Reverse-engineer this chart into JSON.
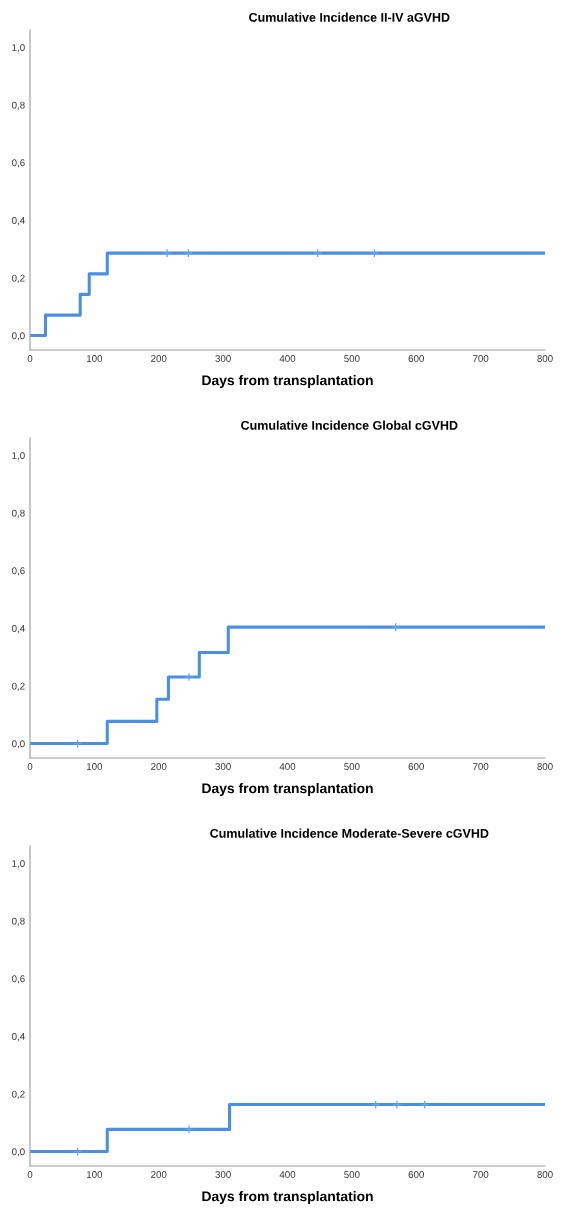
{
  "chart_data": [
    {
      "type": "step",
      "title": "Cumulative Incidence II-IV aGVHD",
      "xlabel": "Days from transplantation",
      "series": [
        {
          "color": "#4a8fe3",
          "x": [
            0,
            24,
            78,
            92,
            120,
            800
          ],
          "values": [
            0,
            0.071,
            0.143,
            0.214,
            0.286,
            0.286
          ]
        },
        {
          "type": "scatter",
          "marker": "cross",
          "color": "#6aa3e8",
          "x": [
            213,
            246,
            447,
            535
          ],
          "values": [
            0.286,
            0.286,
            0.286,
            0.286
          ]
        }
      ],
      "xlim": [
        0,
        800
      ],
      "xticks": [
        0,
        100,
        200,
        300,
        400,
        500,
        600,
        700,
        800
      ],
      "ylim": [
        -0.05,
        1.06
      ],
      "yticks": [
        {
          "value": 0,
          "label": "0,0"
        },
        {
          "value": 0.2,
          "label": "0,2"
        },
        {
          "value": 0.4,
          "label": "0,4"
        },
        {
          "value": 0.6,
          "label": "0,6"
        },
        {
          "value": 0.8,
          "label": "0,8"
        },
        {
          "value": 1.0,
          "label": "1,0"
        }
      ],
      "grid": false
    },
    {
      "type": "step",
      "title": "Cumulative Incidence Global cGVHD",
      "xlabel": "Days from transplantation",
      "series": [
        {
          "color": "#4a8fe3",
          "x": [
            0,
            120,
            197,
            215,
            263,
            308,
            800
          ],
          "values": [
            0,
            0.077,
            0.154,
            0.231,
            0.316,
            0.404,
            0.404
          ]
        },
        {
          "type": "scatter",
          "marker": "cross",
          "color": "#6aa3e8",
          "x": [
            74,
            247,
            568
          ],
          "values": [
            0,
            0.231,
            0.404
          ]
        }
      ],
      "xlim": [
        0,
        800
      ],
      "xticks": [
        0,
        100,
        200,
        300,
        400,
        500,
        600,
        700,
        800
      ],
      "ylim": [
        -0.05,
        1.06
      ],
      "yticks": [
        {
          "value": 0,
          "label": "0,0"
        },
        {
          "value": 0.2,
          "label": "0,2"
        },
        {
          "value": 0.4,
          "label": "0,4"
        },
        {
          "value": 0.6,
          "label": "0,6"
        },
        {
          "value": 0.8,
          "label": "0,8"
        },
        {
          "value": 1.0,
          "label": "1,0"
        }
      ],
      "grid": false
    },
    {
      "type": "step",
      "title": "Cumulative Incidence Moderate-Severe cGVHD",
      "xlabel": "Days from transplantation",
      "series": [
        {
          "color": "#4a8fe3",
          "x": [
            0,
            120,
            310,
            800
          ],
          "values": [
            0,
            0.077,
            0.163,
            0.163
          ]
        },
        {
          "type": "scatter",
          "marker": "cross",
          "color": "#6aa3e8",
          "x": [
            74,
            247,
            537,
            570,
            613
          ],
          "values": [
            0,
            0.077,
            0.163,
            0.163,
            0.163
          ]
        }
      ],
      "xlim": [
        0,
        800
      ],
      "xticks": [
        0,
        100,
        200,
        300,
        400,
        500,
        600,
        700,
        800
      ],
      "ylim": [
        -0.05,
        1.06
      ],
      "yticks": [
        {
          "value": 0,
          "label": "0,0"
        },
        {
          "value": 0.2,
          "label": "0,2"
        },
        {
          "value": 0.4,
          "label": "0,4"
        },
        {
          "value": 0.6,
          "label": "0,6"
        },
        {
          "value": 0.8,
          "label": "0,8"
        },
        {
          "value": 1.0,
          "label": "1,0"
        }
      ],
      "grid": false
    }
  ]
}
